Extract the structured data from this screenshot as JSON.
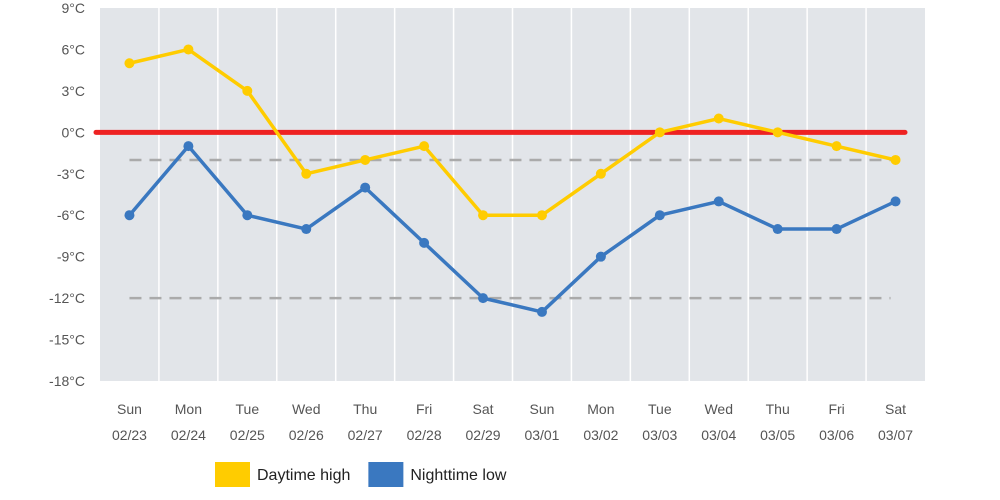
{
  "chart_data": {
    "type": "line",
    "title": "",
    "xlabel": "",
    "ylabel": "",
    "ylim": [
      -18,
      9
    ],
    "y_ticks": [
      9,
      6,
      3,
      0,
      -3,
      -6,
      -9,
      -12,
      -15,
      -18
    ],
    "y_tick_suffix": "°C",
    "grid": true,
    "categories": [
      {
        "day": "Sun",
        "date": "02/23"
      },
      {
        "day": "Mon",
        "date": "02/24"
      },
      {
        "day": "Tue",
        "date": "02/25"
      },
      {
        "day": "Wed",
        "date": "02/26"
      },
      {
        "day": "Thu",
        "date": "02/27"
      },
      {
        "day": "Fri",
        "date": "02/28"
      },
      {
        "day": "Sat",
        "date": "02/29"
      },
      {
        "day": "Sun",
        "date": "03/01"
      },
      {
        "day": "Mon",
        "date": "03/02"
      },
      {
        "day": "Tue",
        "date": "03/03"
      },
      {
        "day": "Wed",
        "date": "03/04"
      },
      {
        "day": "Thu",
        "date": "03/05"
      },
      {
        "day": "Fri",
        "date": "03/06"
      },
      {
        "day": "Sat",
        "date": "03/07"
      }
    ],
    "series": [
      {
        "name": "Daytime high",
        "color": "#ffcc00",
        "values": [
          5,
          6,
          3,
          -3,
          -2,
          -1,
          -6,
          -6,
          -3,
          0,
          1,
          0,
          -1,
          -2
        ]
      },
      {
        "name": "Nighttime low",
        "color": "#3a78c0",
        "values": [
          -6,
          -1,
          -6,
          -7,
          -4,
          -8,
          -12,
          -13,
          -9,
          -6,
          -5,
          -7,
          -7,
          -5
        ]
      }
    ],
    "reference_lines": [
      {
        "value": 0,
        "style": "solid",
        "color": "#ee2222"
      },
      {
        "value": -2,
        "style": "dashed",
        "color": "#aaaaaa"
      },
      {
        "value": -12,
        "style": "dashed",
        "color": "#aaaaaa"
      }
    ],
    "legend_position": "bottom-center",
    "plot_background": "#e2e5e9"
  }
}
